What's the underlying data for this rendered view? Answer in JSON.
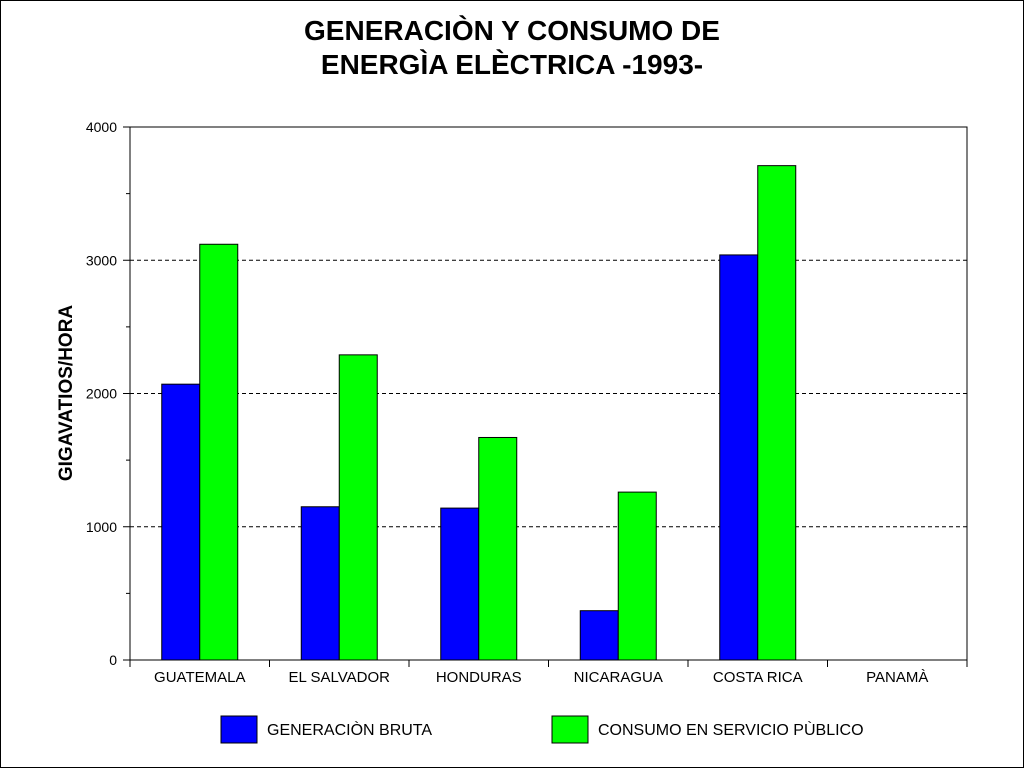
{
  "chart_data": {
    "type": "bar",
    "title_lines": [
      "GENERACIÒN Y CONSUMO DE",
      "ENERGÌA ELÈCTRICA -1993-"
    ],
    "ylabel": "GIGAVATIOS/HORA",
    "xlabel": "",
    "categories": [
      "GUATEMALA",
      "EL SALVADOR",
      "HONDURAS",
      "NICARAGUA",
      "COSTA RICA",
      "PANAMÀ"
    ],
    "series": [
      {
        "name": "GENERACIÒN BRUTA",
        "color": "#0000ff",
        "values": [
          2070,
          1150,
          1140,
          370,
          3040,
          null
        ]
      },
      {
        "name": "CONSUMO EN SERVICIO PÙBLICO",
        "color": "#00ff00",
        "values": [
          3120,
          2290,
          1670,
          1260,
          3710,
          null
        ]
      }
    ],
    "ylim": [
      0,
      4000
    ],
    "yticks": [
      0,
      1000,
      2000,
      3000,
      4000
    ],
    "grid": true,
    "legend_position": "bottom"
  }
}
